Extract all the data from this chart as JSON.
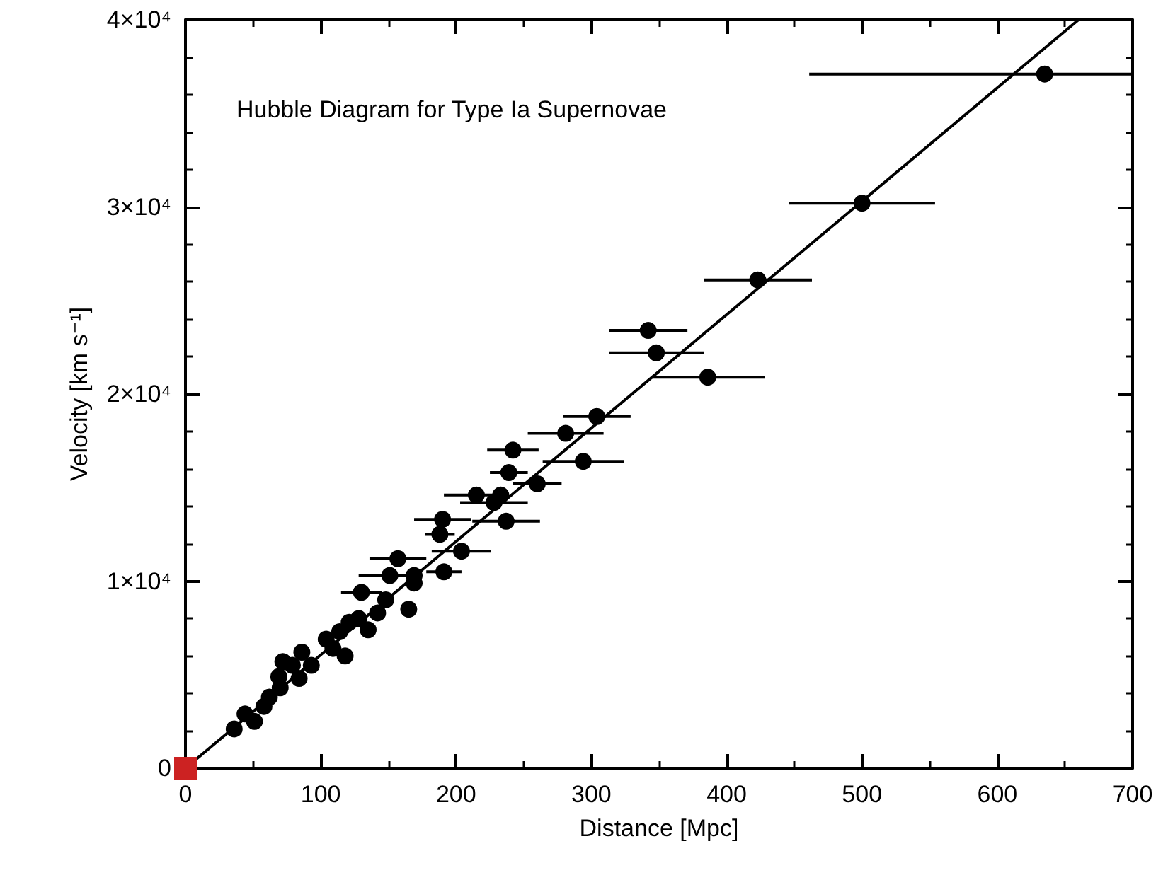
{
  "chart_data": {
    "type": "scatter",
    "title": "Hubble Diagram for Type Ia Supernovae",
    "xlabel": "Distance [Mpc]",
    "ylabel": "Velocity [km s⁻¹]",
    "xlim": [
      0,
      700
    ],
    "xticks": [
      0,
      100,
      200,
      300,
      400,
      500,
      600,
      700
    ],
    "ylim": [
      0,
      40000
    ],
    "yticks": [
      0,
      {
        "value": 10000,
        "label": "1×10⁴"
      },
      {
        "value": 20000,
        "label": "2×10⁴"
      },
      {
        "value": 30000,
        "label": "3×10⁴"
      },
      {
        "value": 40000,
        "label": "4×10⁴"
      }
    ],
    "grid": false,
    "marker": "circle",
    "series": [
      {
        "color": "#000000",
        "x": [
          635,
          500,
          423,
          342,
          348,
          386,
          304,
          281,
          242,
          294,
          239,
          260,
          215,
          233,
          228,
          190,
          237,
          188,
          204,
          157,
          151,
          169,
          169,
          191,
          130,
          148,
          165,
          142,
          135,
          121,
          128,
          114,
          104,
          109,
          86,
          93,
          79,
          84,
          69,
          70,
          62,
          58,
          44,
          51,
          36,
          72,
          118
        ],
        "values": [
          37100,
          30200,
          26100,
          23400,
          22200,
          20900,
          18800,
          17900,
          17000,
          16400,
          15800,
          15200,
          14600,
          14600,
          14200,
          13300,
          13200,
          12500,
          11600,
          11200,
          10300,
          10300,
          9900,
          10500,
          9400,
          9000,
          8500,
          8300,
          7400,
          7800,
          8000,
          7300,
          6900,
          6400,
          6200,
          5500,
          5500,
          4800,
          4900,
          4300,
          3800,
          3300,
          2900,
          2500,
          2100,
          5700,
          6000
        ],
        "xerrors": [
          [
            461,
            700
          ],
          54,
          40,
          29,
          35,
          42,
          25,
          28,
          19,
          30,
          14,
          18,
          24,
          null,
          25,
          21,
          25,
          11,
          22,
          21,
          23,
          null,
          null,
          13,
          15,
          null,
          null,
          null,
          null,
          null,
          null,
          null,
          null,
          null,
          null,
          null,
          null,
          null,
          null,
          null,
          null,
          null,
          null,
          null,
          null,
          null,
          null
        ]
      },
      {
        "color": "#cc2222",
        "marker": "square",
        "x": [
          0
        ],
        "values": [
          0
        ]
      },
      {
        "type": "line",
        "color": "#000000",
        "marker": "none",
        "line_style": "solid",
        "x": [
          0,
          660
        ],
        "values": [
          0,
          40000
        ]
      }
    ]
  }
}
